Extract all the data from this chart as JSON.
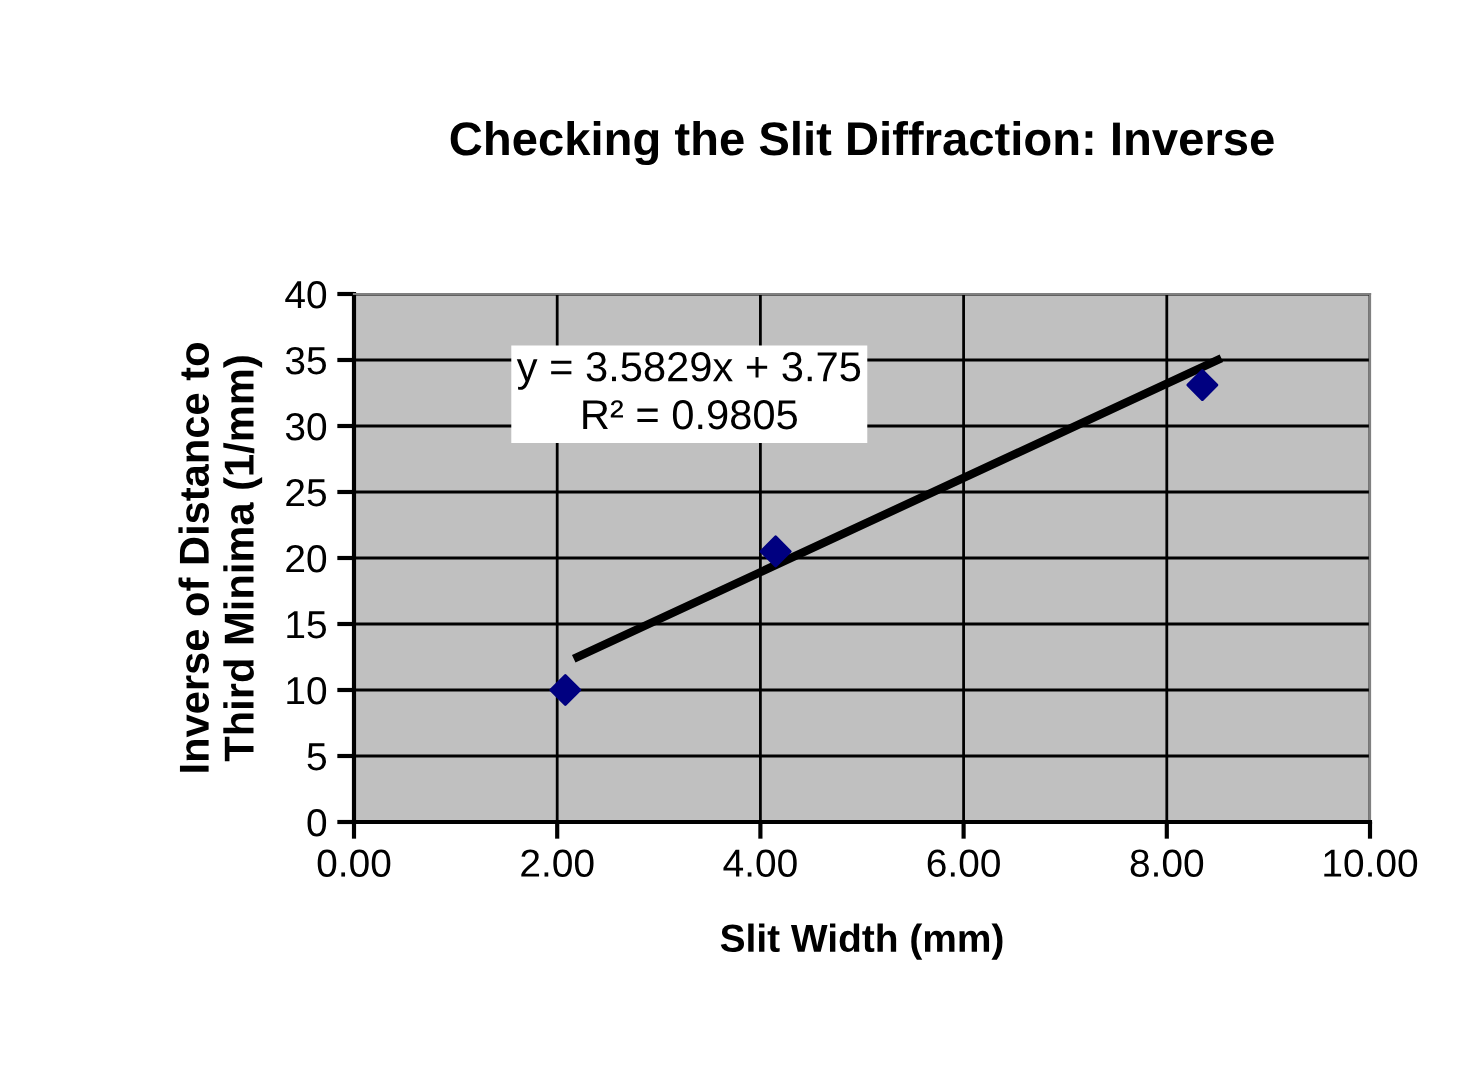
{
  "chart_data": {
    "type": "scatter",
    "title": "Checking the Slit Diffraction: Inverse",
    "xlabel": "Slit Width (mm)",
    "ylabel": "Inverse of Distance to\nThird Minima (1/mm)",
    "x": [
      2.08,
      4.15,
      8.35
    ],
    "series": [
      {
        "color": "#000080",
        "marker": "diamond",
        "values": [
          10,
          20.5,
          33.1
        ]
      },
      {
        "type": "line",
        "color": "#000000",
        "marker": "none",
        "x": [
          2.2,
          8.5
        ],
        "values": [
          12.5,
          35
        ]
      }
    ],
    "annotations": [
      "y = 3.5829x + 3.75\nR² = 0.9805"
    ],
    "xlim": [
      0,
      10
    ],
    "xticks": [
      {
        "value": 0,
        "label": "0.00"
      },
      {
        "value": 2,
        "label": "2.00"
      },
      {
        "value": 4,
        "label": "4.00"
      },
      {
        "value": 6,
        "label": "6.00"
      },
      {
        "value": 8,
        "label": "8.00"
      },
      {
        "value": 10,
        "label": "10.00"
      }
    ],
    "ylim": [
      0,
      40
    ],
    "yticks": [
      0,
      5,
      10,
      15,
      20,
      25,
      30,
      35,
      40
    ],
    "grid": true,
    "legend": false
  }
}
